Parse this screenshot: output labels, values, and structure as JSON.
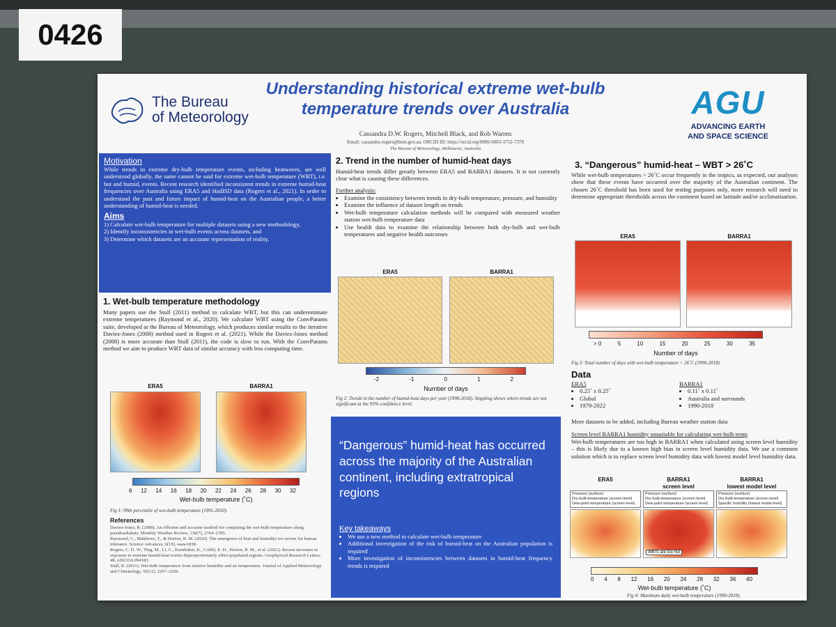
{
  "booth_number": "0426",
  "header": {
    "org_lines": [
      "The Bureau",
      "of Meteorology"
    ],
    "title": "Understanding historical extreme wet-bulb temperature trends over Australia",
    "authors": "Cassandra D.W. Rogers, Mitchell Black, and Rob Warren",
    "email": "Email: cassandra.rogers@bom.gov.au, ORCID ID: https://orcid.org/0000-0003-3752-7378",
    "affiliation": "The Bureau of Meteorology, Melbourne, Australia",
    "agu_logo": "AGU",
    "agu_tagline_lines": [
      "ADVANCING EARTH",
      "AND SPACE SCIENCE"
    ]
  },
  "motivation": {
    "heading": "Motivation",
    "text": "While trends in extreme dry-bulb temperature events, including heatwaves, are well understood globally, the same cannot be said for extreme wet-bulb temperature (WBT), i.e. hot and humid, events. Recent research identified inconsistent trends in extreme humid-heat frequencies over Australia using ERA5 and HadISD data (Rogers et al., 2021). In order to understand the past and future impact of humid-heat on the Australian people, a better understanding of humid-heat is needed."
  },
  "aims": {
    "heading": "Aims",
    "items": [
      "1) Calculate wet-bulb temperature for multiple datasets using a new methodology,",
      "2) Identify inconsistencies in wet-bulb events across datasets, and",
      "3) Determine which datasets are an accurate representation of reality."
    ]
  },
  "section1": {
    "heading": "1. Wet-bulb temperature methodology",
    "text": "Many papers use the Stull (2011) method to calculate WBT, but this can underestimate extreme temperatures (Raymond et al., 2020). We calculate WBT using the ConvParams suite, developed at the Bureau of Meteorology, which produces similar results to the iterative Davies-Jones (2008) method used in Rogers et al. (2021). While the Davies-Jones method (2008) is more accurate than Stull (2011), the code is slow to run. With the ConvParams method we aim to produce WBT data of similar accuracy with less computing time.",
    "panels": [
      "ERA5",
      "BARRA1"
    ],
    "colorbar_ticks": [
      "6",
      "12",
      "14",
      "16",
      "18",
      "20",
      "22",
      "24",
      "26",
      "28",
      "30",
      "32"
    ],
    "colorbar_label": "Wet-bulb temperature (˚C)",
    "caption": "Fig 1: 99th percentile of wet-bulb temperature (1991-2010)."
  },
  "references": {
    "heading": "References",
    "items": [
      "Davies-Jones, R. (2008). An efficient and accurate method for computing the wet-bulb temperature along pseudoadiabats. Monthly Weather Review, 136(7), 2764–2785.",
      "Raymond, C., Matthews, T., & Horton, R. M. (2020). The emergence of heat and humidity too severe for human tolerance. Science Advances, 6(19), eaaw1838.",
      "Rogers, C. D. W., Ting, M., Li, C., Kornhuber, K., Coffel, E. D., Horton, R. M., et al. (2021). Recent increases in exposure to extreme humid-heat events disproportionately affect populated regions. Geophysical Research Letters, 48, e2021GL094183.",
      "Stull, R. (2011). Wet-bulb temperature from relative humidity and air temperature. Journal of Applied Meteorology and Climatology, 50(11), 2267–2269."
    ]
  },
  "section2": {
    "heading": "2. Trend in the number of humid-heat days",
    "text": "Humid-heat trends differ greatly between ERA5 and BARRA1 datasets. It is not currently clear what is causing these differences.",
    "subheading": "Further analysis:",
    "items": [
      "Examine the consistency between trends in dry-bulb temperature, pressure, and humidity",
      "Examine the influence of dataset length on trends",
      "Wet-bulb temperature calculation methods will be compared with measured weather station wet-bulb temperature data",
      "Use health data to examine the relationship between both dry-bulb and wet-bulb temperatures and negative health outcomes"
    ],
    "panels": [
      "ERA5",
      "BARRA1"
    ],
    "colorbar_ticks": [
      "-2",
      "-1",
      "0",
      "1",
      "2"
    ],
    "colorbar_label": "Number of days",
    "caption": "Fig 2: Trends in the number of humid-heat days per year (1990-2018). Stippling shows where trends are not significant at the 95% confidence level."
  },
  "highlight": {
    "text": "“Dangerous” humid-heat has occurred across the majority of the Australian continent, including extratropical regions",
    "takeaways_heading": "Key takeaways",
    "takeaways": [
      "We use a new method to calculate wet-bulb temperature",
      "Additional investigation of the risk of humid-heat on the Australian population is required",
      "More investigation of inconsistencies between datasets in humid-heat frequency trends is required"
    ]
  },
  "section3": {
    "heading": "3. “Dangerous” humid-heat – WBT > 26˚C",
    "text": "While wet-bulb temperatures > 26˚C occur frequently in the tropics, as expected, our analyses show that these events have occurred over the majority of the Australian continent. The chosen 26˚C threshold has been used for testing purposes only, more research will need to determine appropriate thresholds across the continent based on latitude and/or acclimatisation.",
    "panels": [
      "ERA5",
      "BARRA1"
    ],
    "colorbar_ticks": [
      "> 0",
      "5",
      "10",
      "15",
      "20",
      "25",
      "30",
      "35"
    ],
    "colorbar_label": "Number of days",
    "caption": "Fig 3: Total number of days with wet-bulb temperature > 26˚C (1990-2018)."
  },
  "data_section": {
    "heading": "Data",
    "datasets": [
      {
        "name": "ERA5",
        "items": [
          "0.25˚ x 0.25˚",
          "Global",
          "1979-2022"
        ]
      },
      {
        "name": "BARRA1",
        "items": [
          "0.11˚ x 0.11˚",
          "Australia and surrounds",
          "1990-2018"
        ]
      }
    ],
    "note": "More datasets to be added, including Bureau weather station data"
  },
  "humidity": {
    "heading": "Screen level BARRA1 humidity unsuitable for calculating wet-bulb temp",
    "text": "Wet-bulb temperatures are too high in BARRA1 when calculated using screen level humidity – this is likely due to a known high bias in screen level humidity data. We use a common solution which is to replace screen level humidity data with lowest model level humidity data.",
    "panels": [
      {
        "title_lines": [
          "ERA5"
        ],
        "legend": [
          "Pressure (surface)",
          "Dry-bulb temperature (screen level)",
          "Dew-point temperature (screen level)"
        ]
      },
      {
        "title_lines": [
          "BARRA1",
          "screen level"
        ],
        "legend": [
          "Pressure (surface)",
          "Dry-bulb temperature (screen level)",
          "Dew-point temperature (screen level)"
        ],
        "note": "WBTs are too hot"
      },
      {
        "title_lines": [
          "BARRA1",
          "lowest model level"
        ],
        "legend": [
          "Pressure (surface)",
          "Dry-bulb temperature (screen level)",
          "Specific humidity (lowest model level)"
        ]
      }
    ],
    "colorbar_ticks": [
      "0",
      "4",
      "8",
      "12",
      "16",
      "20",
      "24",
      "28",
      "32",
      "36",
      "40"
    ],
    "colorbar_label": "Wet-bulb temperature (˚C)",
    "caption": "Fig 4: Maximum daily wet-bulb temperature (1990-2018)."
  }
}
